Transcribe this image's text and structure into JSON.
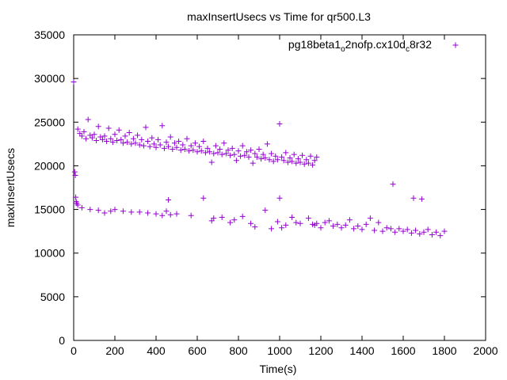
{
  "chart_data": {
    "type": "scatter",
    "title": "maxInsertUsecs vs Time for qr500.L3",
    "xlabel": "Time(s)",
    "ylabel": "maxInsertUsecs",
    "xlim": [
      0,
      2000
    ],
    "ylim": [
      0,
      35000
    ],
    "xticks": [
      "0",
      "200",
      "400",
      "600",
      "800",
      "1000",
      "1200",
      "1400",
      "1600",
      "1800",
      "2000"
    ],
    "yticks": [
      "0",
      "5000",
      "10000",
      "15000",
      "20000",
      "25000",
      "30000",
      "35000"
    ],
    "grid": false,
    "legend_position": "top-right",
    "marker": "+",
    "color": "#9400d3",
    "legend": {
      "name_main": "pg18beta1",
      "sub1": "o",
      "name_mid": "2nofp.cx10d",
      "sub2": "c",
      "name_end": "8r32"
    },
    "series": [
      {
        "points": [
          [
            0,
            29600
          ],
          [
            5,
            19300
          ],
          [
            8,
            18900
          ],
          [
            10,
            16400
          ],
          [
            12,
            15900
          ],
          [
            15,
            15700
          ],
          [
            20,
            15500
          ],
          [
            20,
            24200
          ],
          [
            30,
            23700
          ],
          [
            40,
            23400
          ],
          [
            50,
            23900
          ],
          [
            60,
            23100
          ],
          [
            70,
            25300
          ],
          [
            80,
            23500
          ],
          [
            90,
            23200
          ],
          [
            100,
            23600
          ],
          [
            110,
            22900
          ],
          [
            120,
            24500
          ],
          [
            130,
            23300
          ],
          [
            140,
            23000
          ],
          [
            150,
            23400
          ],
          [
            160,
            22800
          ],
          [
            170,
            24300
          ],
          [
            180,
            23100
          ],
          [
            190,
            22700
          ],
          [
            200,
            23600
          ],
          [
            210,
            22900
          ],
          [
            220,
            24100
          ],
          [
            230,
            23000
          ],
          [
            240,
            22600
          ],
          [
            250,
            23400
          ],
          [
            260,
            22700
          ],
          [
            270,
            23800
          ],
          [
            280,
            22500
          ],
          [
            290,
            23100
          ],
          [
            300,
            22600
          ],
          [
            310,
            23500
          ],
          [
            320,
            22400
          ],
          [
            330,
            23000
          ],
          [
            340,
            22300
          ],
          [
            350,
            24400
          ],
          [
            360,
            22800
          ],
          [
            370,
            22200
          ],
          [
            380,
            23200
          ],
          [
            390,
            22500
          ],
          [
            400,
            22100
          ],
          [
            410,
            23000
          ],
          [
            420,
            22400
          ],
          [
            430,
            24600
          ],
          [
            440,
            22000
          ],
          [
            450,
            22700
          ],
          [
            460,
            22200
          ],
          [
            470,
            23300
          ],
          [
            480,
            21900
          ],
          [
            490,
            22600
          ],
          [
            500,
            22100
          ],
          [
            510,
            22800
          ],
          [
            520,
            21800
          ],
          [
            530,
            22400
          ],
          [
            540,
            21900
          ],
          [
            550,
            23100
          ],
          [
            560,
            21700
          ],
          [
            570,
            22300
          ],
          [
            580,
            21800
          ],
          [
            590,
            22600
          ],
          [
            600,
            21600
          ],
          [
            610,
            22200
          ],
          [
            620,
            21700
          ],
          [
            630,
            22800
          ],
          [
            640,
            21500
          ],
          [
            650,
            22000
          ],
          [
            660,
            21600
          ],
          [
            670,
            20400
          ],
          [
            680,
            21400
          ],
          [
            690,
            22300
          ],
          [
            700,
            21500
          ],
          [
            710,
            21900
          ],
          [
            720,
            21300
          ],
          [
            730,
            22600
          ],
          [
            740,
            21400
          ],
          [
            750,
            21800
          ],
          [
            760,
            21200
          ],
          [
            770,
            22000
          ],
          [
            780,
            21300
          ],
          [
            790,
            20600
          ],
          [
            800,
            21700
          ],
          [
            810,
            21100
          ],
          [
            820,
            22300
          ],
          [
            830,
            21200
          ],
          [
            840,
            21600
          ],
          [
            850,
            21000
          ],
          [
            860,
            21800
          ],
          [
            870,
            20300
          ],
          [
            880,
            21400
          ],
          [
            890,
            21000
          ],
          [
            900,
            21900
          ],
          [
            910,
            20800
          ],
          [
            920,
            21300
          ],
          [
            930,
            20900
          ],
          [
            940,
            22500
          ],
          [
            950,
            20700
          ],
          [
            960,
            21400
          ],
          [
            970,
            20500
          ],
          [
            980,
            21100
          ],
          [
            990,
            20700
          ],
          [
            1000,
            24800
          ],
          [
            1010,
            21000
          ],
          [
            1020,
            20600
          ],
          [
            1030,
            21500
          ],
          [
            1040,
            20400
          ],
          [
            1050,
            20900
          ],
          [
            1060,
            20500
          ],
          [
            1070,
            21300
          ],
          [
            1080,
            20300
          ],
          [
            1090,
            20800
          ],
          [
            1100,
            20400
          ],
          [
            1110,
            21200
          ],
          [
            1120,
            20200
          ],
          [
            1130,
            20700
          ],
          [
            1140,
            20300
          ],
          [
            1150,
            21100
          ],
          [
            1160,
            20100
          ],
          [
            1170,
            20600
          ],
          [
            1180,
            21000
          ],
          [
            40,
            15200
          ],
          [
            80,
            15000
          ],
          [
            120,
            14900
          ],
          [
            150,
            14600
          ],
          [
            180,
            14800
          ],
          [
            200,
            15000
          ],
          [
            240,
            14800
          ],
          [
            280,
            14700
          ],
          [
            320,
            14700
          ],
          [
            360,
            14600
          ],
          [
            400,
            14500
          ],
          [
            430,
            14300
          ],
          [
            450,
            14800
          ],
          [
            460,
            16100
          ],
          [
            470,
            14400
          ],
          [
            500,
            14500
          ],
          [
            570,
            14300
          ],
          [
            630,
            16300
          ],
          [
            670,
            13700
          ],
          [
            680,
            14000
          ],
          [
            720,
            14100
          ],
          [
            760,
            13500
          ],
          [
            780,
            13800
          ],
          [
            820,
            14200
          ],
          [
            860,
            13400
          ],
          [
            880,
            13000
          ],
          [
            930,
            14900
          ],
          [
            960,
            12800
          ],
          [
            990,
            13600
          ],
          [
            1000,
            16300
          ],
          [
            1010,
            12900
          ],
          [
            1030,
            13200
          ],
          [
            1060,
            14100
          ],
          [
            1080,
            13500
          ],
          [
            1100,
            13400
          ],
          [
            1140,
            14000
          ],
          [
            1160,
            13300
          ],
          [
            1170,
            13200
          ],
          [
            1180,
            13400
          ],
          [
            1200,
            12900
          ],
          [
            1220,
            13500
          ],
          [
            1240,
            13700
          ],
          [
            1260,
            13100
          ],
          [
            1280,
            13300
          ],
          [
            1300,
            12900
          ],
          [
            1320,
            13200
          ],
          [
            1340,
            13800
          ],
          [
            1360,
            12800
          ],
          [
            1380,
            13100
          ],
          [
            1400,
            12700
          ],
          [
            1420,
            13300
          ],
          [
            1440,
            14000
          ],
          [
            1460,
            12600
          ],
          [
            1480,
            13500
          ],
          [
            1500,
            12500
          ],
          [
            1520,
            12900
          ],
          [
            1540,
            12800
          ],
          [
            1550,
            17900
          ],
          [
            1560,
            12400
          ],
          [
            1580,
            12800
          ],
          [
            1600,
            12500
          ],
          [
            1620,
            12700
          ],
          [
            1640,
            12300
          ],
          [
            1650,
            16300
          ],
          [
            1660,
            12600
          ],
          [
            1680,
            12200
          ],
          [
            1690,
            16200
          ],
          [
            1700,
            12400
          ],
          [
            1720,
            12700
          ],
          [
            1740,
            12100
          ],
          [
            1760,
            12400
          ],
          [
            1780,
            12000
          ],
          [
            1800,
            12500
          ]
        ]
      }
    ]
  }
}
